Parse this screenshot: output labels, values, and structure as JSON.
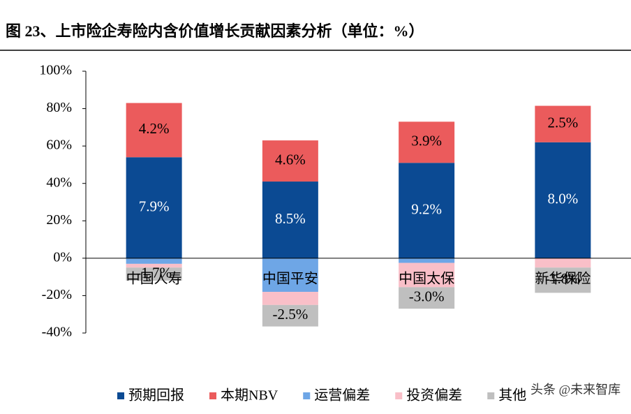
{
  "chart_data": {
    "type": "stacked_bar",
    "title": "图 23、上市险企寿险内含价值增长贡献因素分析（单位：%）",
    "categories": [
      "中国人寿",
      "中国平安",
      "中国太保",
      "新华保险"
    ],
    "series": [
      {
        "name": "预期回报",
        "color": "#0b4a93",
        "values": [
          54,
          41,
          51,
          62
        ],
        "annotations": [
          "7.9%",
          "8.5%",
          "9.2%",
          "8.0%"
        ]
      },
      {
        "name": "本期NBV",
        "color": "#eb5b5c",
        "values": [
          29,
          22,
          22,
          19.5
        ],
        "annotations": [
          "4.2%",
          "4.6%",
          "3.9%",
          "2.5%"
        ]
      },
      {
        "name": "运营偏差",
        "color": "#6ea6e6",
        "values": [
          -3,
          -18,
          -2.5,
          0
        ]
      },
      {
        "name": "投资偏差",
        "color": "#f9bfc8",
        "values": [
          -2,
          -7,
          -13,
          -5
        ]
      },
      {
        "name": "其他",
        "color": "#bfbfbf",
        "values": [
          -7,
          -11.5,
          -11.5,
          -13.5
        ],
        "annotations": [
          "-1.7%",
          "-2.5%",
          "-3.0%",
          "-1.8%"
        ]
      }
    ],
    "ylim": [
      -40,
      100
    ],
    "yticks": [
      {
        "value": -40,
        "label": "-40%"
      },
      {
        "value": -20,
        "label": "-20%"
      },
      {
        "value": 0,
        "label": "0%"
      },
      {
        "value": 20,
        "label": "20%"
      },
      {
        "value": 40,
        "label": "40%"
      },
      {
        "value": 60,
        "label": "60%"
      },
      {
        "value": 80,
        "label": "80%"
      },
      {
        "value": 100,
        "label": "100%"
      }
    ],
    "watermark": "头条 @未来智库"
  }
}
